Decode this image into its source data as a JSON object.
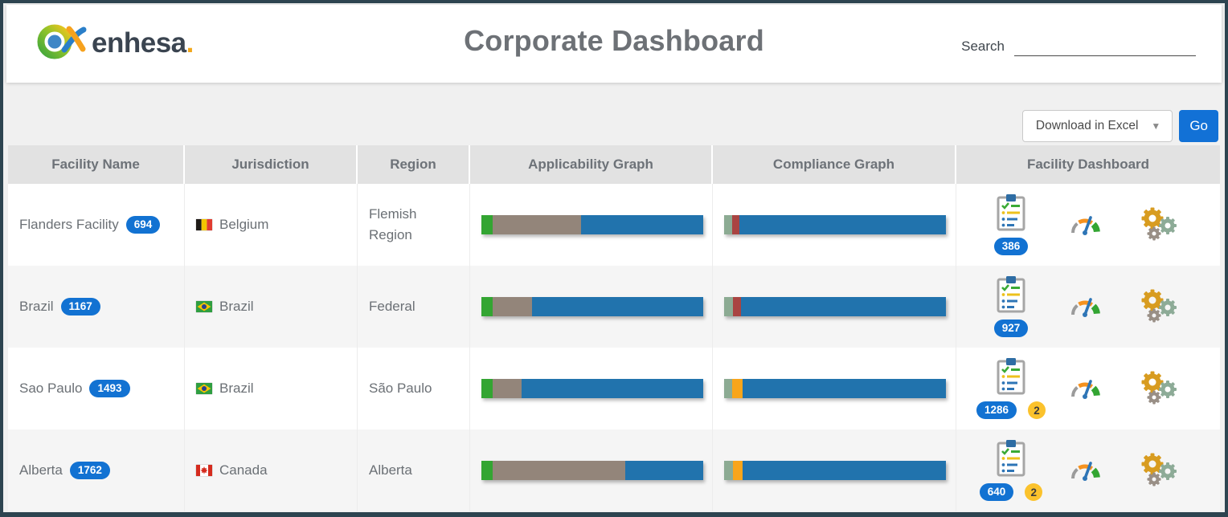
{
  "header": {
    "brand": "enhesa",
    "brand_suffix": ".",
    "title": "Corporate Dashboard",
    "search_label": "Search",
    "search_value": ""
  },
  "toolbar": {
    "download_label": "Download in Excel",
    "go_label": "Go"
  },
  "table": {
    "columns": [
      "Facility Name",
      "Jurisdiction",
      "Region",
      "Applicability Graph",
      "Compliance Graph",
      "Facility Dashboard"
    ]
  },
  "icons": {
    "brand": "enhesa-logo-icon",
    "dropdown": "caret-down-icon",
    "requirements": "checklist-clipboard-icon",
    "gauge": "compliance-gauge-icon",
    "gears": "settings-gears-icon"
  },
  "colors": {
    "green": "#33a532",
    "taupe": "#93857a",
    "blue": "#2173ad",
    "sage": "#8cab93",
    "red": "#a94442",
    "orange": "#f8a51b",
    "badge_blue": "#1272d2",
    "badge_yellow": "#fbc22c",
    "accent": "#1271d6"
  },
  "chart_data": [
    {
      "type": "bar",
      "row": "Flanders Facility",
      "name": "Applicability Graph",
      "segments": [
        {
          "color": "green",
          "pct": 5
        },
        {
          "color": "taupe",
          "pct": 40
        },
        {
          "color": "blue",
          "pct": 55
        }
      ]
    },
    {
      "type": "bar",
      "row": "Flanders Facility",
      "name": "Compliance Graph",
      "segments": [
        {
          "color": "sage",
          "pct": 3.6
        },
        {
          "color": "red",
          "pct": 3.4
        },
        {
          "color": "blue",
          "pct": 93
        }
      ]
    },
    {
      "type": "bar",
      "row": "Brazil",
      "name": "Applicability Graph",
      "segments": [
        {
          "color": "green",
          "pct": 5
        },
        {
          "color": "taupe",
          "pct": 18
        },
        {
          "color": "blue",
          "pct": 77
        }
      ]
    },
    {
      "type": "bar",
      "row": "Brazil",
      "name": "Compliance Graph",
      "segments": [
        {
          "color": "sage",
          "pct": 4
        },
        {
          "color": "red",
          "pct": 3.5
        },
        {
          "color": "blue",
          "pct": 92.5
        }
      ]
    },
    {
      "type": "bar",
      "row": "Sao Paulo",
      "name": "Applicability Graph",
      "segments": [
        {
          "color": "green",
          "pct": 5
        },
        {
          "color": "taupe",
          "pct": 13
        },
        {
          "color": "blue",
          "pct": 82
        }
      ]
    },
    {
      "type": "bar",
      "row": "Sao Paulo",
      "name": "Compliance Graph",
      "segments": [
        {
          "color": "sage",
          "pct": 3.6
        },
        {
          "color": "orange",
          "pct": 4.8
        },
        {
          "color": "blue",
          "pct": 91.6
        }
      ]
    },
    {
      "type": "bar",
      "row": "Alberta",
      "name": "Applicability Graph",
      "segments": [
        {
          "color": "green",
          "pct": 5
        },
        {
          "color": "taupe",
          "pct": 60
        },
        {
          "color": "blue",
          "pct": 35
        }
      ]
    },
    {
      "type": "bar",
      "row": "Alberta",
      "name": "Compliance Graph",
      "segments": [
        {
          "color": "sage",
          "pct": 4
        },
        {
          "color": "orange",
          "pct": 4.5
        },
        {
          "color": "blue",
          "pct": 91.5
        }
      ]
    }
  ],
  "rows": [
    {
      "facility": "Flanders Facility",
      "count": "694",
      "flag": "belgium",
      "jurisdiction": "Belgium",
      "region": "Flemish Region",
      "applicability": [
        {
          "color": "green",
          "pct": 5
        },
        {
          "color": "taupe",
          "pct": 40
        },
        {
          "color": "blue",
          "pct": 55
        }
      ],
      "compliance": [
        {
          "color": "sage",
          "pct": 3.6
        },
        {
          "color": "red",
          "pct": 3.4
        },
        {
          "color": "blue",
          "pct": 93
        }
      ],
      "requirements_badge": "386",
      "tasks_badge": null
    },
    {
      "facility": "Brazil",
      "count": "1167",
      "flag": "brazil",
      "jurisdiction": "Brazil",
      "region": "Federal",
      "applicability": [
        {
          "color": "green",
          "pct": 5
        },
        {
          "color": "taupe",
          "pct": 18
        },
        {
          "color": "blue",
          "pct": 77
        }
      ],
      "compliance": [
        {
          "color": "sage",
          "pct": 4
        },
        {
          "color": "red",
          "pct": 3.5
        },
        {
          "color": "blue",
          "pct": 92.5
        }
      ],
      "requirements_badge": "927",
      "tasks_badge": null
    },
    {
      "facility": "Sao Paulo",
      "count": "1493",
      "flag": "brazil",
      "jurisdiction": "Brazil",
      "region": "São Paulo",
      "applicability": [
        {
          "color": "green",
          "pct": 5
        },
        {
          "color": "taupe",
          "pct": 13
        },
        {
          "color": "blue",
          "pct": 82
        }
      ],
      "compliance": [
        {
          "color": "sage",
          "pct": 3.6
        },
        {
          "color": "orange",
          "pct": 4.8
        },
        {
          "color": "blue",
          "pct": 91.6
        }
      ],
      "requirements_badge": "1286",
      "tasks_badge": "2"
    },
    {
      "facility": "Alberta",
      "count": "1762",
      "flag": "canada",
      "jurisdiction": "Canada",
      "region": "Alberta",
      "applicability": [
        {
          "color": "green",
          "pct": 5
        },
        {
          "color": "taupe",
          "pct": 60
        },
        {
          "color": "blue",
          "pct": 35
        }
      ],
      "compliance": [
        {
          "color": "sage",
          "pct": 4
        },
        {
          "color": "orange",
          "pct": 4.5
        },
        {
          "color": "blue",
          "pct": 91.5
        }
      ],
      "requirements_badge": "640",
      "tasks_badge": "2"
    }
  ]
}
